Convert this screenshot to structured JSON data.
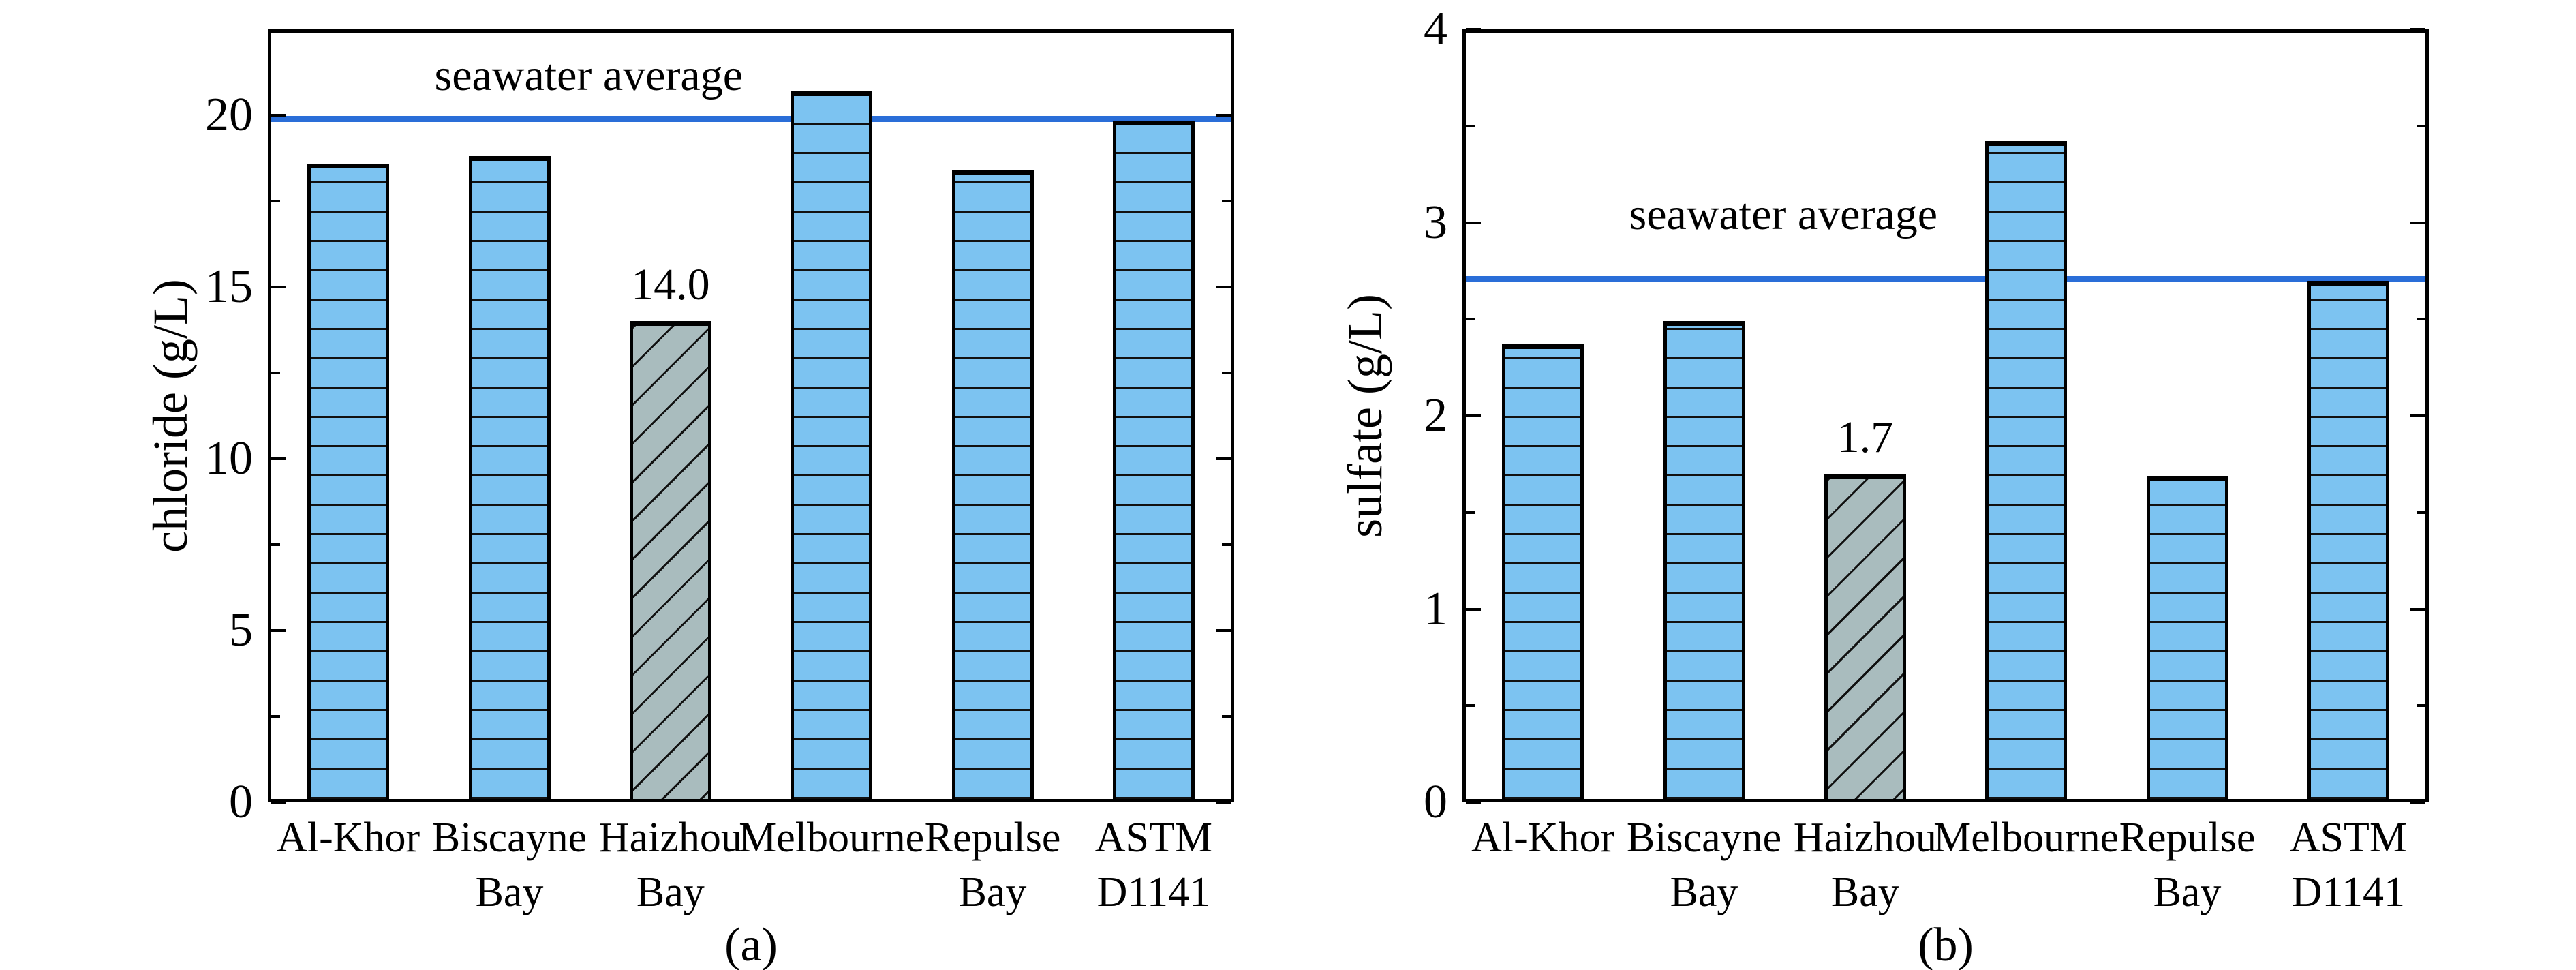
{
  "colors": {
    "background": "#ffffff",
    "bar_fill": "#7cc3f1",
    "bar_alt_fill": "#a9bcbe",
    "bar_edge": "#000000",
    "hatch": "#111111",
    "reference_line": "#2a6ed8",
    "frame": "#000000",
    "text": "#000000"
  },
  "chart_data": [
    {
      "id": "a",
      "type": "bar",
      "caption": "(a)",
      "ylabel": "chloride (g/L)",
      "xlabel": "",
      "ylim": [
        0,
        22.5
      ],
      "yticks": [
        0,
        5,
        10,
        15,
        20
      ],
      "yticks_minor": [
        2.5,
        7.5,
        12.5,
        17.5
      ],
      "grid": false,
      "categories": [
        "Al-Khor",
        "Biscayne Bay",
        "Haizhou Bay",
        "Melbourne",
        "Repulse Bay",
        "ASTM D1141"
      ],
      "category_lines": [
        [
          "Al-Khor",
          ""
        ],
        [
          "Biscayne",
          "Bay"
        ],
        [
          "Haizhou",
          "Bay"
        ],
        [
          "Melbourne",
          ""
        ],
        [
          "Repulse",
          "Bay"
        ],
        [
          "ASTM",
          "D1141"
        ]
      ],
      "values": [
        18.6,
        18.8,
        14.0,
        20.7,
        18.4,
        19.85
      ],
      "bar_value_labels": [
        "",
        "",
        "14.0",
        "",
        "",
        ""
      ],
      "bar_styles": [
        "blue-horizontal-hatch",
        "blue-horizontal-hatch",
        "gray-diagonal-hatch",
        "blue-horizontal-hatch",
        "blue-horizontal-hatch",
        "blue-horizontal-hatch"
      ],
      "reference_line": {
        "value": 19.9,
        "label": "seawater average"
      }
    },
    {
      "id": "b",
      "type": "bar",
      "caption": "(b)",
      "ylabel": "sulfate (g/L)",
      "xlabel": "",
      "ylim": [
        0,
        4
      ],
      "yticks": [
        0,
        1,
        2,
        3,
        4
      ],
      "yticks_minor": [
        0.5,
        1.5,
        2.5,
        3.5
      ],
      "grid": false,
      "categories": [
        "Al-Khor",
        "Biscayne Bay",
        "Haizhou Bay",
        "Melbourne",
        "Repulse Bay",
        "ASTM D1141"
      ],
      "category_lines": [
        [
          "Al-Khor",
          ""
        ],
        [
          "Biscayne",
          "Bay"
        ],
        [
          "Haizhou",
          "Bay"
        ],
        [
          "Melbourne",
          ""
        ],
        [
          "Repulse",
          "Bay"
        ],
        [
          "ASTM",
          "D1141"
        ]
      ],
      "values": [
        2.37,
        2.49,
        1.7,
        3.42,
        1.69,
        2.7
      ],
      "bar_value_labels": [
        "",
        "",
        "1.7",
        "",
        "",
        ""
      ],
      "bar_styles": [
        "blue-horizontal-hatch",
        "blue-horizontal-hatch",
        "gray-diagonal-hatch",
        "blue-horizontal-hatch",
        "blue-horizontal-hatch",
        "blue-horizontal-hatch"
      ],
      "reference_line": {
        "value": 2.71,
        "label": "seawater average"
      }
    }
  ]
}
